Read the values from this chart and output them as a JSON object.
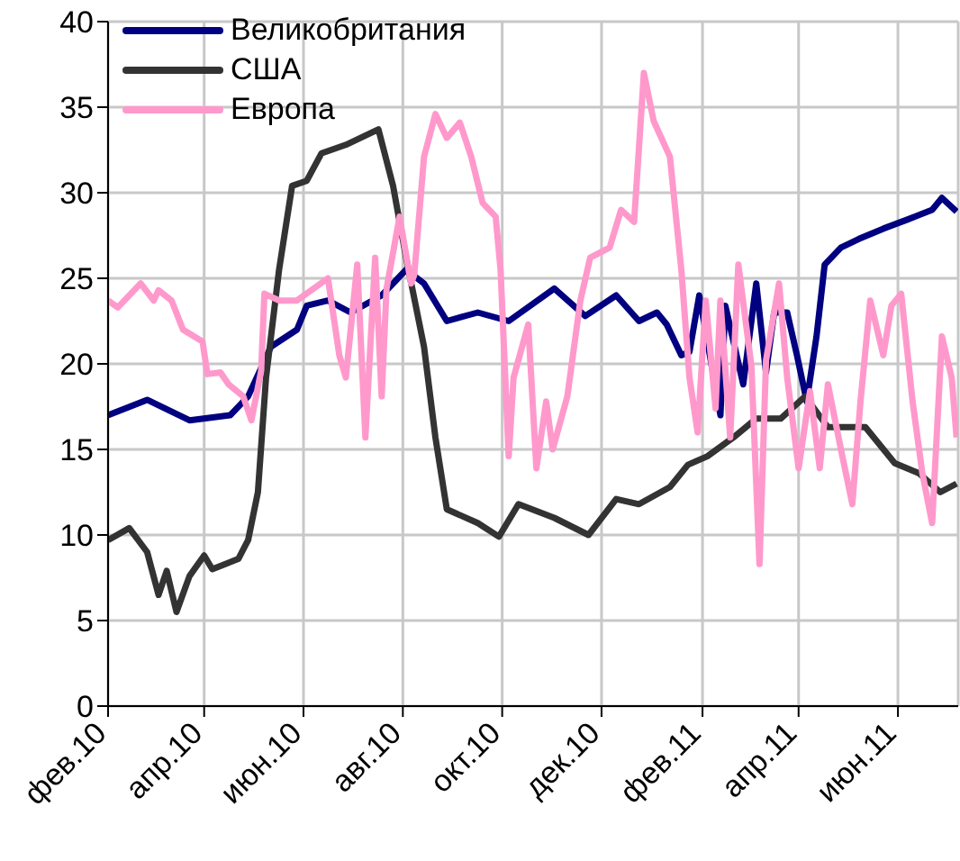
{
  "chart_data": {
    "type": "line",
    "legend": "top left",
    "grid": true,
    "marker": "none",
    "line_style": "solid",
    "xlim": [
      "2010-02-01",
      "2011-07-08"
    ],
    "xticks": [
      {
        "value": "2010-02-01",
        "label": "фев.10"
      },
      {
        "value": "2010-04-01",
        "label": "апр.10"
      },
      {
        "value": "2010-06-01",
        "label": "июн.10"
      },
      {
        "value": "2010-08-01",
        "label": "авг.10"
      },
      {
        "value": "2010-10-01",
        "label": "окт.10"
      },
      {
        "value": "2010-12-01",
        "label": "дек.10"
      },
      {
        "value": "2011-02-01",
        "label": "фев.11"
      },
      {
        "value": "2011-04-01",
        "label": "апр.11"
      },
      {
        "value": "2011-06-01",
        "label": "июн.11"
      }
    ],
    "ylim": [
      0,
      40
    ],
    "yticks": [
      0,
      5,
      10,
      15,
      20,
      25,
      30,
      35,
      40
    ],
    "series": [
      {
        "name": "Великобритания",
        "color": "#000080",
        "x": [
          "2010-02-01",
          "2010-02-25",
          "2010-03-23",
          "2010-04-17",
          "2010-04-28",
          "2010-05-12",
          "2010-05-28",
          "2010-06-03",
          "2010-06-16",
          "2010-06-30",
          "2010-07-19",
          "2010-08-03",
          "2010-08-14",
          "2010-08-28",
          "2010-09-16",
          "2010-10-05",
          "2010-11-02",
          "2010-11-21",
          "2010-12-10",
          "2010-12-24",
          "2011-01-04",
          "2011-01-10",
          "2011-01-19",
          "2011-01-24",
          "2011-01-30",
          "2011-02-12",
          "2011-02-15",
          "2011-02-26",
          "2011-03-06",
          "2011-03-12",
          "2011-03-17",
          "2011-03-25",
          "2011-03-31",
          "2011-04-06",
          "2011-04-12",
          "2011-04-17",
          "2011-04-27",
          "2011-05-08",
          "2011-05-23",
          "2011-06-06",
          "2011-06-22",
          "2011-06-28",
          "2011-07-07"
        ],
        "values": [
          17,
          17.9,
          16.7,
          17,
          18.1,
          21,
          22,
          23.4,
          23.7,
          23,
          24,
          25.5,
          24.7,
          22.5,
          23,
          22.5,
          24.4,
          22.8,
          24,
          22.5,
          23,
          22.3,
          20.5,
          20.7,
          24,
          17,
          23.4,
          18.8,
          24.7,
          19.5,
          23,
          23,
          20.5,
          17.8,
          21.6,
          25.8,
          26.8,
          27.3,
          27.9,
          28.4,
          29,
          29.7,
          28.9
        ]
      },
      {
        "name": "США",
        "color": "#333333",
        "x": [
          "2010-02-01",
          "2010-02-14",
          "2010-02-25",
          "2010-03-04",
          "2010-03-09",
          "2010-03-15",
          "2010-03-23",
          "2010-04-01",
          "2010-04-06",
          "2010-04-22",
          "2010-04-28",
          "2010-05-04",
          "2010-05-09",
          "2010-05-17",
          "2010-05-25",
          "2010-06-03",
          "2010-06-12",
          "2010-06-27",
          "2010-07-17",
          "2010-07-26",
          "2010-08-03",
          "2010-08-14",
          "2010-08-21",
          "2010-08-28",
          "2010-09-16",
          "2010-09-29",
          "2010-10-11",
          "2010-11-02",
          "2010-11-23",
          "2010-12-10",
          "2010-12-24",
          "2011-01-12",
          "2011-01-23",
          "2011-02-04",
          "2011-02-20",
          "2011-03-06",
          "2011-03-21",
          "2011-04-05",
          "2011-04-19",
          "2011-05-12",
          "2011-05-30",
          "2011-06-14",
          "2011-06-27",
          "2011-07-07"
        ],
        "values": [
          9.7,
          10.4,
          9,
          6.5,
          7.9,
          5.5,
          7.6,
          8.8,
          8,
          8.6,
          9.7,
          12.5,
          19.2,
          25.5,
          30.4,
          30.7,
          32.3,
          32.8,
          33.7,
          30.4,
          26.2,
          21,
          15.7,
          11.5,
          10.7,
          9.9,
          11.8,
          11,
          10,
          12.1,
          11.8,
          12.8,
          14.1,
          14.6,
          15.7,
          16.8,
          16.8,
          18.1,
          16.3,
          16.3,
          14.2,
          13.6,
          12.5,
          13
        ]
      },
      {
        "name": "Европа",
        "color": "#ff99cc",
        "x": [
          "2010-02-01",
          "2010-02-07",
          "2010-02-21",
          "2010-03-01",
          "2010-03-04",
          "2010-03-12",
          "2010-03-19",
          "2010-03-31",
          "2010-04-03",
          "2010-04-11",
          "2010-04-16",
          "2010-04-25",
          "2010-04-30",
          "2010-05-06",
          "2010-05-08",
          "2010-05-17",
          "2010-05-28",
          "2010-06-16",
          "2010-06-23",
          "2010-06-27",
          "2010-07-04",
          "2010-07-09",
          "2010-07-15",
          "2010-07-19",
          "2010-07-22",
          "2010-07-30",
          "2010-08-06",
          "2010-08-08",
          "2010-08-14",
          "2010-08-21",
          "2010-08-28",
          "2010-09-05",
          "2010-09-12",
          "2010-09-19",
          "2010-09-27",
          "2010-09-30",
          "2010-10-05",
          "2010-10-08",
          "2010-10-17",
          "2010-10-22",
          "2010-10-28",
          "2010-11-01",
          "2010-11-10",
          "2010-11-18",
          "2010-11-24",
          "2010-12-06",
          "2010-12-13",
          "2010-12-21",
          "2010-12-27",
          "2011-01-02",
          "2011-01-12",
          "2011-01-19",
          "2011-01-24",
          "2011-01-29",
          "2011-02-03",
          "2011-02-09",
          "2011-02-12",
          "2011-02-18",
          "2011-02-23",
          "2011-03-03",
          "2011-03-08",
          "2011-03-12",
          "2011-03-20",
          "2011-03-25",
          "2011-04-01",
          "2011-04-08",
          "2011-04-14",
          "2011-04-19",
          "2011-04-27",
          "2011-05-04",
          "2011-05-09",
          "2011-05-15",
          "2011-05-23",
          "2011-05-28",
          "2011-06-03",
          "2011-06-10",
          "2011-06-16",
          "2011-06-22",
          "2011-06-28",
          "2011-07-04",
          "2011-07-07"
        ],
        "values": [
          23.7,
          23.3,
          24.7,
          23.7,
          24.3,
          23.7,
          22,
          21.3,
          19.4,
          19.5,
          18.8,
          18.1,
          16.7,
          19.6,
          24.1,
          23.7,
          23.7,
          25,
          20.5,
          19.2,
          25.8,
          15.7,
          26.2,
          18.1,
          24.4,
          28.6,
          24.7,
          25.2,
          32.1,
          34.6,
          33.2,
          34.1,
          32.1,
          29.4,
          28.6,
          25.5,
          14.6,
          19.2,
          22.3,
          13.9,
          17.8,
          15,
          18.1,
          23.7,
          26.2,
          26.8,
          29,
          28.3,
          37,
          34.2,
          32.1,
          25.5,
          19.2,
          16,
          23.7,
          17.4,
          23.7,
          15.7,
          25.8,
          19.9,
          8.3,
          20.2,
          24.7,
          19.2,
          13.9,
          18.4,
          13.9,
          18.8,
          15,
          11.8,
          17.8,
          23.7,
          20.5,
          23.4,
          24.1,
          17.8,
          13.6,
          10.7,
          21.6,
          19.2,
          15.7
        ]
      }
    ]
  }
}
